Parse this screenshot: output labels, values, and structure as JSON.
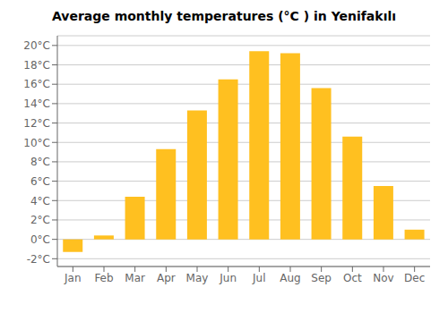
{
  "chart_data": {
    "type": "bar",
    "title": "Average monthly temperatures (°C ) in Yenifakılı",
    "categories": [
      "Jan",
      "Feb",
      "Mar",
      "Apr",
      "May",
      "Jun",
      "Jul",
      "Aug",
      "Sep",
      "Oct",
      "Nov",
      "Dec"
    ],
    "values": [
      -1.3,
      0.4,
      4.4,
      9.3,
      13.3,
      16.5,
      19.4,
      19.2,
      15.6,
      10.6,
      5.5,
      1.0
    ],
    "color": "#FFC020",
    "ylim": [
      -2.8,
      21.0
    ],
    "yticks": [
      {
        "value": -2,
        "label": "-2°C"
      },
      {
        "value": 0,
        "label": "0°C"
      },
      {
        "value": 2,
        "label": "2°C"
      },
      {
        "value": 4,
        "label": "4°C"
      },
      {
        "value": 6,
        "label": "6°C"
      },
      {
        "value": 8,
        "label": "8°C"
      },
      {
        "value": 10,
        "label": "10°C"
      },
      {
        "value": 12,
        "label": "12°C"
      },
      {
        "value": 14,
        "label": "14°C"
      },
      {
        "value": 16,
        "label": "16°C"
      },
      {
        "value": 18,
        "label": "18°C"
      },
      {
        "value": 20,
        "label": "20°C"
      }
    ],
    "grid": true
  }
}
